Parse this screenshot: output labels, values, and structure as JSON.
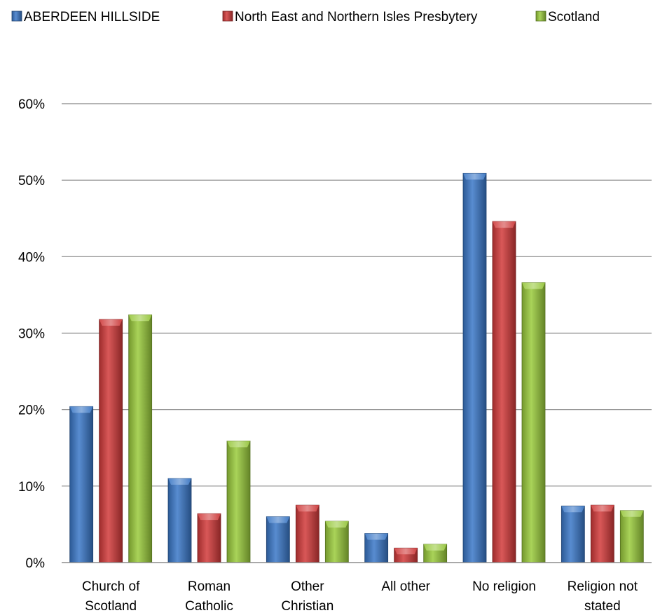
{
  "chart_data": {
    "type": "bar",
    "title": "",
    "xlabel": "",
    "ylabel": "",
    "categories": [
      [
        "Church of",
        "Scotland"
      ],
      [
        "Roman",
        "Catholic"
      ],
      [
        "Other",
        "Christian"
      ],
      [
        "All other"
      ],
      [
        "No religion"
      ],
      [
        "Religion not",
        "stated"
      ]
    ],
    "series": [
      {
        "name": "ABERDEEN HILLSIDE",
        "color": "#3a78c8",
        "values": [
          20.4,
          11.0,
          6.0,
          3.8,
          50.9,
          7.4
        ]
      },
      {
        "name": "North East and Northern Isles Presbytery",
        "color": "#d23a3a",
        "values": [
          31.8,
          6.4,
          7.5,
          1.9,
          44.6,
          7.5
        ]
      },
      {
        "name": "Scotland",
        "color": "#9acb3c",
        "values": [
          32.4,
          15.9,
          5.4,
          2.4,
          36.6,
          6.8
        ]
      }
    ],
    "ylim": [
      0,
      60
    ],
    "yticks": [
      "0%",
      "10%",
      "20%",
      "30%",
      "40%",
      "50%",
      "60%"
    ],
    "grid": true,
    "legend_position": "top"
  }
}
